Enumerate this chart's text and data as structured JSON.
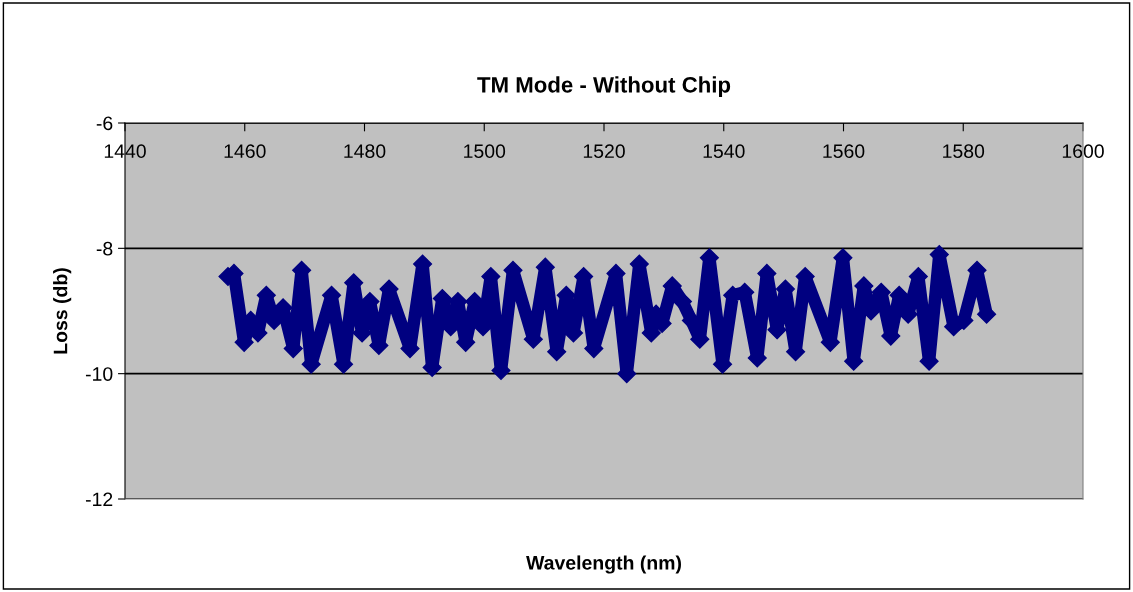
{
  "chart_data": {
    "type": "line",
    "title": "TM Mode - Without Chip",
    "xlabel": "Wavelength (nm)",
    "ylabel": "Loss (db)",
    "xlim": [
      1440,
      1600
    ],
    "xticks": [
      1440,
      1460,
      1480,
      1500,
      1520,
      1540,
      1560,
      1580,
      1600
    ],
    "ylim": [
      -12,
      -6
    ],
    "yticks": [
      -12,
      -10,
      -8,
      -6
    ],
    "grid": "y",
    "marker": "diamond",
    "line_style": "solid",
    "series": [
      {
        "color": "#000080",
        "x": [
          1457.2,
          1458.2,
          1459.9,
          1461.0,
          1462.2,
          1463.6,
          1464.9,
          1466.4,
          1468.1,
          1469.5,
          1471.1,
          1474.5,
          1476.5,
          1478.2,
          1479.6,
          1480.9,
          1482.4,
          1484.1,
          1487.6,
          1489.7,
          1491.3,
          1493.0,
          1494.4,
          1495.6,
          1496.9,
          1498.4,
          1499.8,
          1501.1,
          1502.8,
          1504.8,
          1508.2,
          1510.2,
          1512.1,
          1513.7,
          1514.9,
          1516.6,
          1518.3,
          1522.0,
          1523.8,
          1525.9,
          1527.9,
          1528.7,
          1529.7,
          1531.4,
          1533.1,
          1534.6,
          1536.0,
          1537.6,
          1539.8,
          1541.5,
          1543.5,
          1545.6,
          1547.2,
          1548.9,
          1550.3,
          1552.0,
          1553.6,
          1557.8,
          1559.9,
          1561.7,
          1563.4,
          1564.6,
          1566.3,
          1567.9,
          1569.3,
          1570.8,
          1572.5,
          1574.3,
          1576.0,
          1578.4,
          1580.1,
          1582.3,
          1583.9
        ],
        "values": [
          -8.45,
          -8.4,
          -9.5,
          -9.15,
          -9.35,
          -8.75,
          -9.15,
          -8.95,
          -9.6,
          -8.35,
          -9.85,
          -8.75,
          -9.85,
          -8.55,
          -9.35,
          -8.85,
          -9.55,
          -8.65,
          -9.6,
          -8.25,
          -9.9,
          -8.8,
          -9.25,
          -8.85,
          -9.5,
          -8.85,
          -9.25,
          -8.45,
          -9.95,
          -8.35,
          -9.45,
          -8.3,
          -9.65,
          -8.75,
          -9.35,
          -8.45,
          -9.6,
          -8.4,
          -10.0,
          -8.25,
          -9.35,
          -9.05,
          -9.2,
          -8.6,
          -8.85,
          -9.15,
          -9.45,
          -8.15,
          -9.85,
          -8.75,
          -8.7,
          -9.75,
          -8.4,
          -9.3,
          -8.65,
          -9.65,
          -8.45,
          -9.5,
          -8.15,
          -9.8,
          -8.6,
          -9.0,
          -8.7,
          -9.4,
          -8.75,
          -9.05,
          -8.45,
          -9.8,
          -8.1,
          -9.25,
          -9.15,
          -8.35,
          -9.05
        ]
      }
    ]
  }
}
